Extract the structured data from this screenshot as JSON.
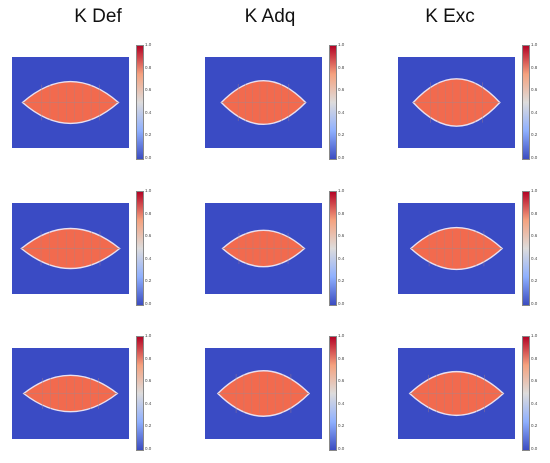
{
  "columns": [
    {
      "title": "K Def"
    },
    {
      "title": "K Adq"
    },
    {
      "title": "K Exc"
    }
  ],
  "colorbar": {
    "ticks": [
      "1.0",
      "0.8",
      "0.6",
      "0.4",
      "0.2",
      "0.0"
    ],
    "colors": {
      "low": "#3b4cc0",
      "mid": "#dddcdc",
      "high": "#b40426"
    }
  },
  "colors": {
    "background": "#3a4bc4",
    "leaf_fill": "#f26a4e",
    "leaf_edge": "#e8e0f0",
    "vein": "#b08080"
  }
}
